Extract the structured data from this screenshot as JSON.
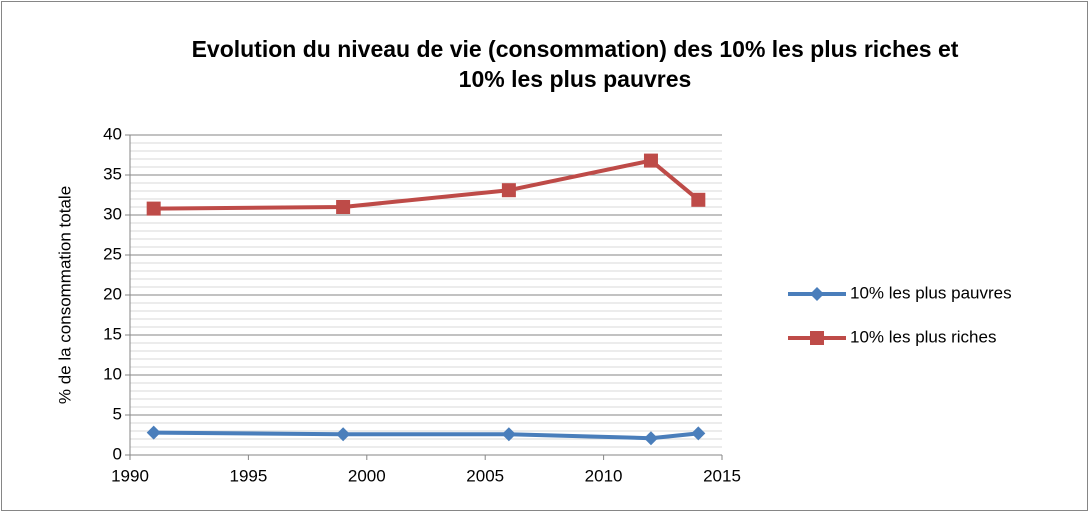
{
  "chart_data": {
    "type": "line",
    "title": "Evolution du niveau de vie (consommation) des 10% les plus riches et 10% les plus pauvres",
    "ylabel": "% de la consommation totale",
    "x": [
      1991,
      1999,
      2006,
      2012,
      2014
    ],
    "series": [
      {
        "name": "10% les plus pauvres",
        "color": "#4a7ebb",
        "marker": "diamond",
        "values": [
          2.8,
          2.6,
          2.6,
          2.1,
          2.7
        ]
      },
      {
        "name": "10% les plus riches",
        "color": "#be4b48",
        "marker": "square",
        "values": [
          30.8,
          31.0,
          33.1,
          36.8,
          31.9
        ]
      }
    ],
    "xlim": [
      1990,
      2015
    ],
    "xticks": [
      1990,
      1995,
      2000,
      2005,
      2010,
      2015
    ],
    "ylim": [
      0,
      40
    ],
    "yticks": [
      0,
      5,
      10,
      15,
      20,
      25,
      30,
      35,
      40
    ],
    "grid": true,
    "minor_grid_step": 1,
    "legend": "right"
  }
}
